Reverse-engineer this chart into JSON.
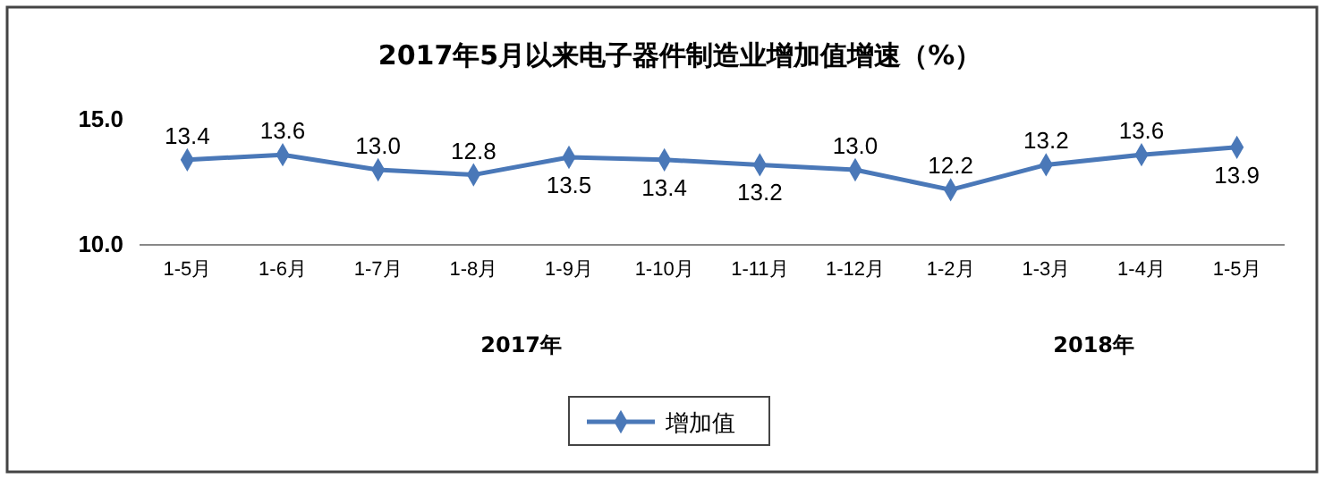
{
  "chart_data": {
    "type": "line",
    "title": "2017年5月以来电子器件制造业增加值增速（%）",
    "categories": [
      "1-5月",
      "1-6月",
      "1-7月",
      "1-8月",
      "1-9月",
      "1-10月",
      "1-11月",
      "1-12月",
      "1-2月",
      "1-3月",
      "1-4月",
      "1-5月"
    ],
    "series": [
      {
        "name": "增加值",
        "color": "#4a78b8",
        "values": [
          13.4,
          13.6,
          13.0,
          12.8,
          13.5,
          13.4,
          13.2,
          13.0,
          12.2,
          13.2,
          13.6,
          13.9
        ],
        "value_labels": [
          "13.4",
          "13.6",
          "13.0",
          "12.8",
          "13.5",
          "13.4",
          "13.2",
          "13.0",
          "12.2",
          "13.2",
          "13.6",
          "13.9"
        ]
      }
    ],
    "ylim": [
      10,
      15
    ],
    "yticks": [
      {
        "value": 10,
        "label": "10.0"
      },
      {
        "value": 15,
        "label": "15.0"
      }
    ],
    "annotations": [
      "2017年",
      "2018年"
    ],
    "marker": "diamond",
    "legend": "bottom",
    "grid": false
  }
}
